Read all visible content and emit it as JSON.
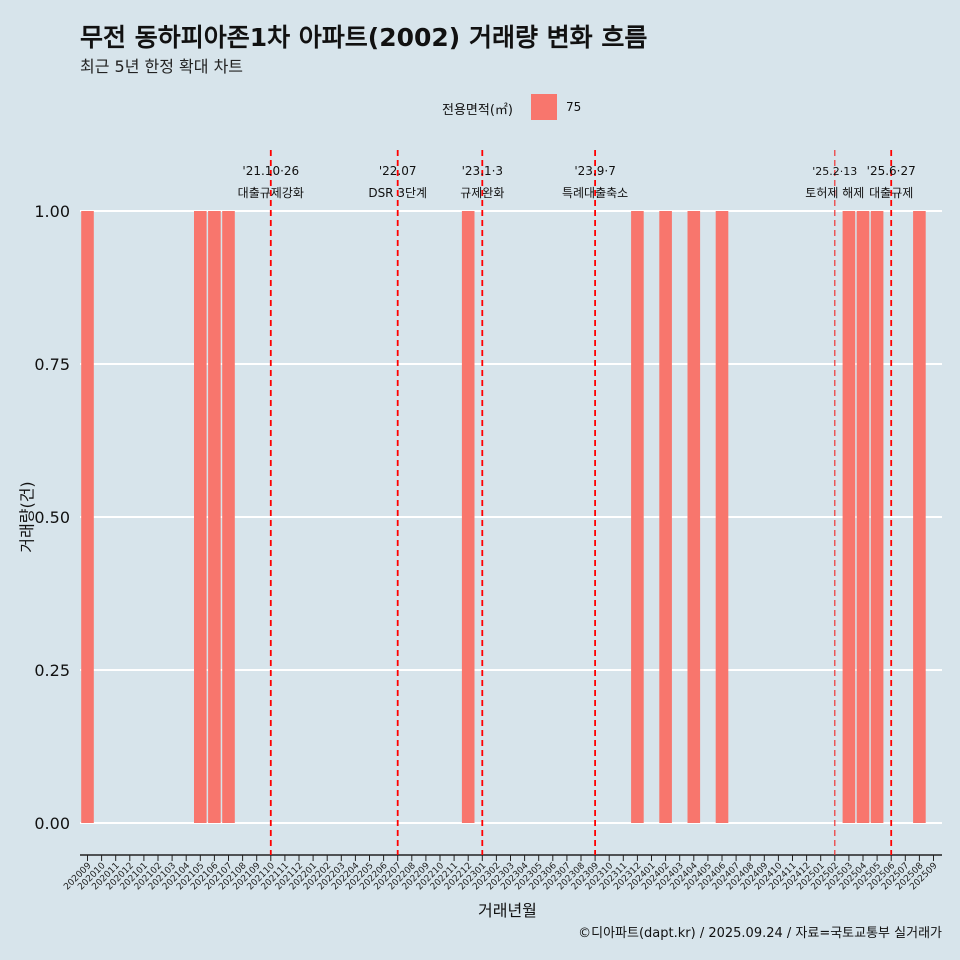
{
  "header": {
    "title": "무전 동하피아존1차 아파트(2002) 거래량 변화 흐름",
    "subtitle": "최근 5년 한정 확대 차트"
  },
  "legend": {
    "title": "전용면적(㎡)",
    "label": "75",
    "color": "#f8766d"
  },
  "caption": "©디아파트(dapt.kr) / 2025.09.24 / 자료=국토교통부 실거래가",
  "chart_data": {
    "type": "bar",
    "xlabel": "거래년월",
    "ylabel": "거래량(건)",
    "ylim": [
      0,
      1
    ],
    "yticks": [
      "0.00",
      "0.25",
      "0.50",
      "0.75",
      "1.00"
    ],
    "categories": [
      "202009",
      "202010",
      "202011",
      "202012",
      "202101",
      "202102",
      "202103",
      "202104",
      "202105",
      "202106",
      "202107",
      "202108",
      "202109",
      "202110",
      "202111",
      "202112",
      "202201",
      "202202",
      "202203",
      "202204",
      "202205",
      "202206",
      "202207",
      "202208",
      "202209",
      "202210",
      "202211",
      "202212",
      "202301",
      "202302",
      "202303",
      "202304",
      "202305",
      "202306",
      "202307",
      "202308",
      "202309",
      "202310",
      "202311",
      "202312",
      "202401",
      "202402",
      "202403",
      "202404",
      "202405",
      "202406",
      "202407",
      "202408",
      "202409",
      "202410",
      "202411",
      "202412",
      "202501",
      "202502",
      "202503",
      "202504",
      "202505",
      "202506",
      "202507",
      "202508",
      "202509"
    ],
    "series": [
      {
        "name": "75",
        "values": {
          "202009": 1,
          "202105": 1,
          "202106": 1,
          "202107": 1,
          "202212": 1,
          "202312": 1,
          "202402": 1,
          "202404": 1,
          "202406": 1,
          "202503": 1,
          "202504": 1,
          "202505": 1,
          "202508": 1
        }
      }
    ],
    "annotations": [
      {
        "month": "202110",
        "date": "'21.10·26",
        "text": "대출규제강화"
      },
      {
        "month": "202207",
        "date": "'22.07",
        "text": "DSR 3단계"
      },
      {
        "month": "202301",
        "date": "'23.1·3",
        "text": "규제완화"
      },
      {
        "month": "202309",
        "date": "'23.9·7",
        "text": "특례대출축소"
      },
      {
        "month": "202502",
        "date": "'25.2·13",
        "text": "토허제 해제"
      },
      {
        "month": "202506",
        "date": "'25.6·27",
        "text": "대출규제"
      }
    ]
  }
}
